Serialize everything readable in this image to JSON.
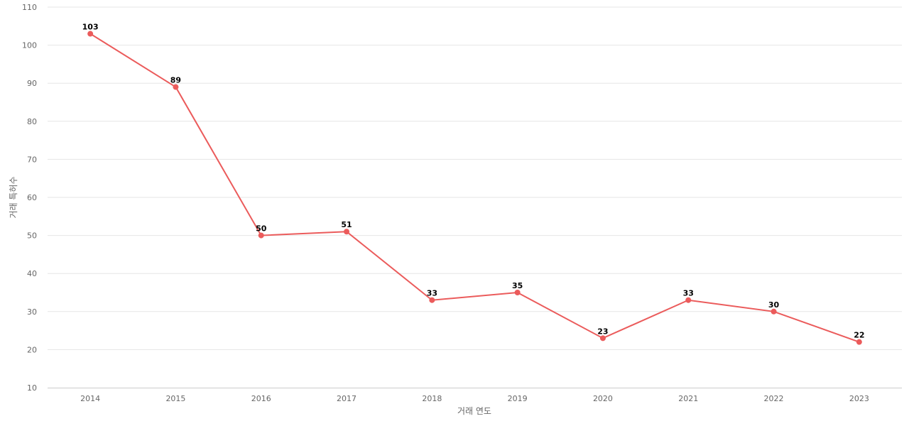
{
  "chart_data": {
    "type": "line",
    "title": "",
    "xlabel": "거래 연도",
    "ylabel": "거래 특허수",
    "categories": [
      "2014",
      "2015",
      "2016",
      "2017",
      "2018",
      "2019",
      "2020",
      "2021",
      "2022",
      "2023"
    ],
    "series": [
      {
        "values": [
          103,
          89,
          50,
          51,
          33,
          35,
          23,
          33,
          30,
          22
        ],
        "color": "#eb5b5b"
      }
    ],
    "ylim": [
      10,
      110
    ],
    "yticks": [
      10,
      20,
      30,
      40,
      50,
      60,
      70,
      80,
      90,
      100,
      110
    ],
    "grid": true,
    "legend": "none"
  }
}
